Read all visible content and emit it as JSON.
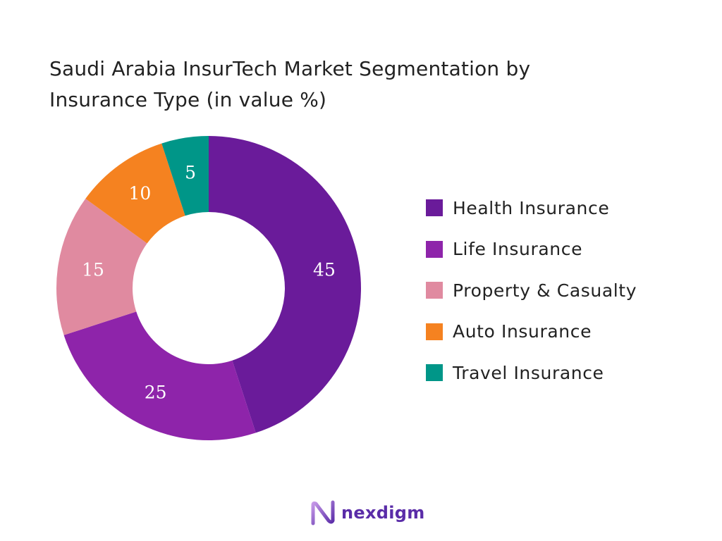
{
  "chart_data": {
    "type": "pie",
    "title_lines": [
      "Saudi Arabia InsurTech Market Segmentation by",
      "Insurance Type (in value %)"
    ],
    "categories": [
      "Health Insurance",
      "Life Insurance",
      "Property & Casualty",
      "Auto Insurance",
      "Travel Insurance"
    ],
    "values": [
      45,
      25,
      15,
      10,
      5
    ],
    "value_labels": [
      "45",
      "25",
      "15",
      "10",
      "5"
    ],
    "colors": [
      "#6a1b9a",
      "#8e24aa",
      "#e08aa0",
      "#f58220",
      "#009688"
    ],
    "legend_position": "right",
    "donut": true
  },
  "brand": {
    "name": "nexdigm",
    "logo_icon": "nexdigm-logo-icon"
  }
}
